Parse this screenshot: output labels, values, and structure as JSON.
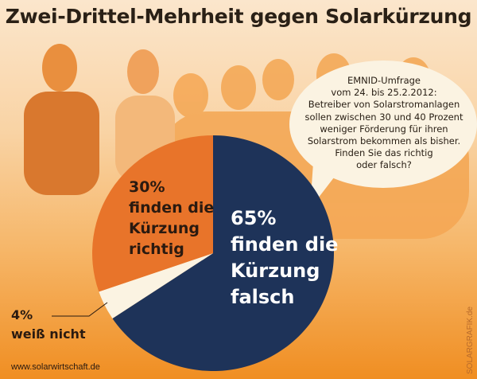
{
  "title": "Zwei-Drittel-Mehrheit gegen Solarkürzung",
  "question": [
    "EMNID-Umfrage",
    "vom 24. bis 25.2.2012:",
    "Betreiber von Solarstromanlagen",
    "sollen zwischen 30 und 40 Prozent",
    "weniger Förderung für ihren",
    "Solarstrom bekommen als bisher.",
    "Finden Sie das richtig",
    "oder falsch?"
  ],
  "chart_data": {
    "type": "pie",
    "title": "Zwei-Drittel-Mehrheit gegen Solarkürzung",
    "slices": [
      {
        "label": "finden die Kürzung falsch",
        "value": 65,
        "color": "#1e3359",
        "lines": [
          "65%",
          "finden die",
          "Kürzung",
          "falsch"
        ]
      },
      {
        "label": "weiß nicht",
        "value": 4,
        "color": "#fbf3e2",
        "lines": [
          "4%",
          "weiß nicht"
        ]
      },
      {
        "label": "finden die Kürzung richtig",
        "value": 30,
        "color": "#e8742a",
        "lines": [
          "30%",
          "finden die",
          "Kürzung",
          "richtig"
        ]
      }
    ]
  },
  "footer": {
    "url": "www.solarwirtschaft.de",
    "credit": "SOLARGRAFIK.de"
  }
}
